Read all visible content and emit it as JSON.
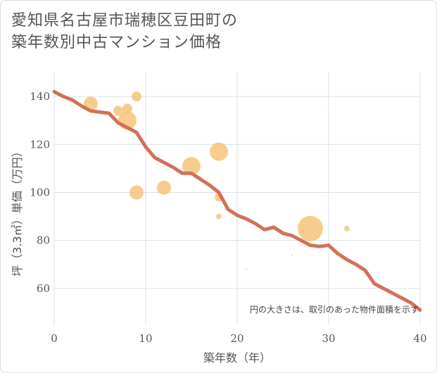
{
  "chart_data": {
    "type": "scatter",
    "title_line1": "愛知県名古屋市瑞穂区豆田町の",
    "title_line2": "築年数別中古マンション価格",
    "xlabel": "築年数（年）",
    "ylabel": "坪（3.3㎡）単価（万円）",
    "xlim": [
      0,
      40
    ],
    "ylim": [
      45,
      150
    ],
    "x_ticks": [
      0,
      10,
      20,
      30,
      40
    ],
    "y_ticks": [
      60,
      80,
      100,
      120,
      140
    ],
    "note": "円の大きさは、取引のあった物件面積を示す",
    "colors": {
      "bubble": "#f5c071",
      "trend": "#d4705a",
      "grid": "#d6e0ea",
      "plot_bg": "#ffffff"
    },
    "scatter_points": [
      {
        "x": 4,
        "y": 137,
        "size": 10
      },
      {
        "x": 7,
        "y": 134,
        "size": 7
      },
      {
        "x": 8,
        "y": 130,
        "size": 13
      },
      {
        "x": 8,
        "y": 135,
        "size": 7
      },
      {
        "x": 9,
        "y": 140,
        "size": 7
      },
      {
        "x": 9,
        "y": 100,
        "size": 10
      },
      {
        "x": 12,
        "y": 102,
        "size": 10
      },
      {
        "x": 15,
        "y": 111,
        "size": 13
      },
      {
        "x": 18,
        "y": 117,
        "size": 13
      },
      {
        "x": 18,
        "y": 98,
        "size": 6
      },
      {
        "x": 18,
        "y": 90,
        "size": 4
      },
      {
        "x": 21,
        "y": 68,
        "size": 1
      },
      {
        "x": 26,
        "y": 74,
        "size": 1
      },
      {
        "x": 28,
        "y": 85,
        "size": 18
      },
      {
        "x": 32,
        "y": 85,
        "size": 4
      }
    ],
    "trend_line": {
      "x": [
        0,
        1,
        2,
        3,
        4,
        5,
        6,
        7,
        8,
        9,
        10,
        11,
        12,
        13,
        14,
        15,
        16,
        17,
        18,
        19,
        20,
        21,
        22,
        23,
        24,
        25,
        26,
        27,
        28,
        29,
        30,
        31,
        32,
        33,
        34,
        35,
        36,
        37,
        38,
        39,
        40
      ],
      "y": [
        142,
        140,
        138.5,
        136,
        134,
        133.5,
        133,
        129,
        127,
        125,
        119,
        114.5,
        112.5,
        110.5,
        108,
        108,
        105.5,
        103,
        100,
        93,
        90.5,
        89,
        87,
        84.5,
        85.5,
        83,
        82,
        80,
        78,
        77.5,
        78,
        74.5,
        72,
        70,
        67.5,
        62,
        60,
        58,
        56,
        54,
        51
      ]
    }
  }
}
